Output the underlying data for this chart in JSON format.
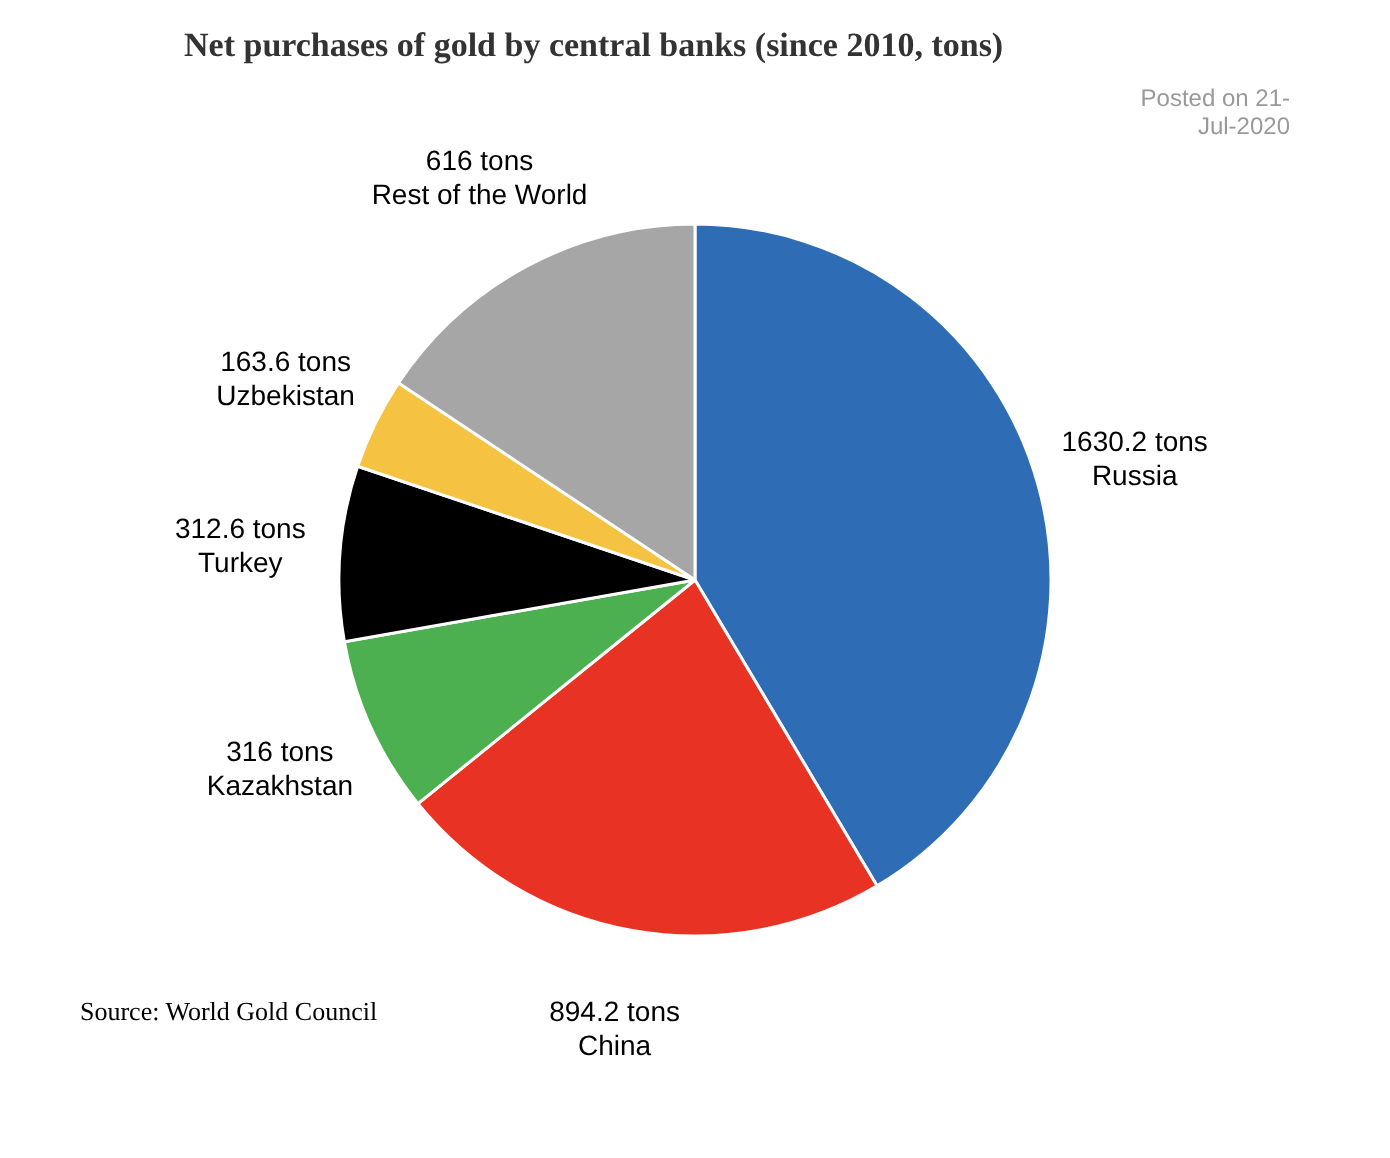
{
  "chart_data": {
    "type": "pie",
    "title": "Net purchases of gold by central banks (since 2010, tons)",
    "categories": [
      "Russia",
      "China",
      "Kazakhstan",
      "Turkey",
      "Uzbekistan",
      "Rest of the World"
    ],
    "values": [
      1630.2,
      894.2,
      316,
      312.6,
      163.6,
      616
    ],
    "value_labels": [
      "1630.2 tons",
      "894.2 tons",
      "316 tons",
      "312.6 tons",
      "163.6 tons",
      "616 tons"
    ],
    "colors": [
      "#2e6db5",
      "#e83223",
      "#4caf50",
      "#000000",
      "#f5c242",
      "#a6a6a6"
    ],
    "legend": false,
    "annotations": [
      "Posted on 21-Jul-2020",
      "Source: World Gold Council"
    ]
  }
}
